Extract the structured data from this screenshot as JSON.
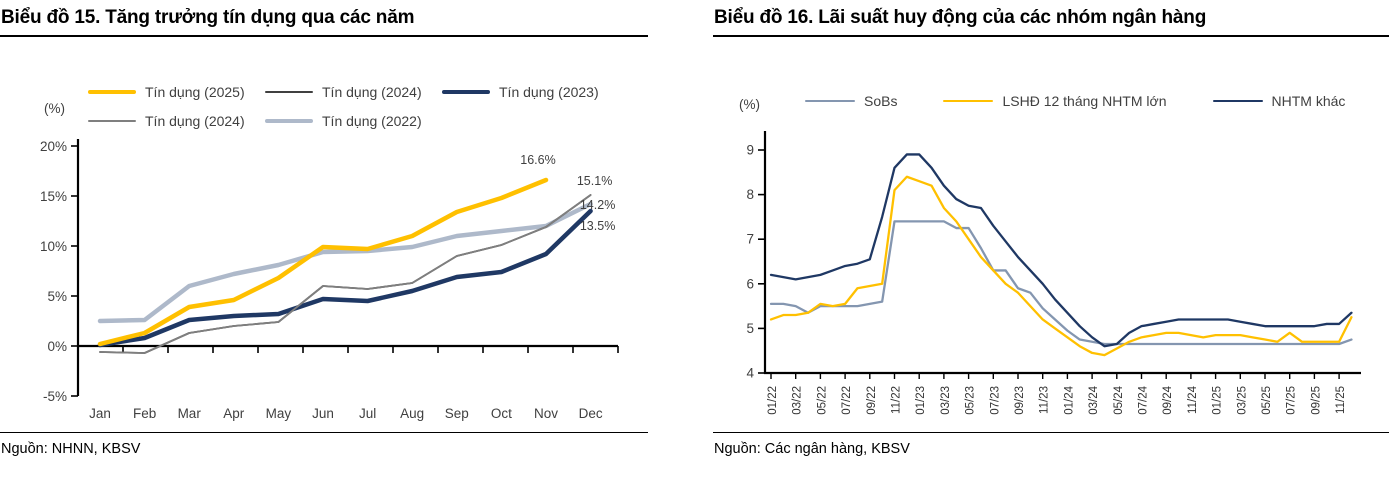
{
  "page": {
    "background": "#FFFFFF"
  },
  "panels": [
    {
      "title": "Biểu đồ 15. Tăng trưởng tín dụng qua các năm",
      "unit_label": "(%)",
      "source": "Nguồn: NHNN, KBSV"
    },
    {
      "title": "Biểu đồ 16. Lãi suất huy động của các nhóm ngân hàng",
      "unit_label": "(%)",
      "source": "Nguồn: Các ngân hàng, KBSV"
    }
  ],
  "chart_data": [
    {
      "type": "line",
      "title": "Biểu đồ 15. Tăng trưởng tín dụng qua các năm",
      "ylabel": "(%)",
      "categories": [
        "Jan",
        "Feb",
        "Mar",
        "Apr",
        "May",
        "Jun",
        "Jul",
        "Aug",
        "Sep",
        "Oct",
        "Nov",
        "Dec"
      ],
      "ylim": [
        -5,
        20
      ],
      "yticks": [
        {
          "v": 20,
          "label": "20%"
        },
        {
          "v": 15,
          "label": "15%"
        },
        {
          "v": 10,
          "label": "10%"
        },
        {
          "v": 5,
          "label": "5%"
        },
        {
          "v": 0,
          "label": "0%"
        },
        {
          "v": -5,
          "label": "-5%"
        }
      ],
      "grid": false,
      "legend_position": "top",
      "legend_rows": [
        [
          0,
          1,
          2
        ],
        [
          3,
          4
        ]
      ],
      "series": [
        {
          "name": "Tín dụng (2025)",
          "color": "#FFC000",
          "thick": true,
          "values": [
            0.2,
            1.3,
            3.9,
            4.6,
            6.8,
            9.9,
            9.7,
            11.0,
            13.4,
            14.8,
            16.6,
            null
          ],
          "end_label": "16.6%"
        },
        {
          "name": "Tín dụng (2024)",
          "color": "#404040",
          "thick": false,
          "values": [
            -0.6,
            -0.7,
            1.3,
            2.0,
            2.4,
            6.0,
            5.7,
            6.3,
            9.0,
            10.1,
            11.9,
            15.1
          ]
        },
        {
          "name": "Tín dụng (2023)",
          "color": "#1F3864",
          "thick": true,
          "values": [
            0.1,
            0.8,
            2.6,
            3.0,
            3.2,
            4.7,
            4.5,
            5.5,
            6.9,
            7.4,
            9.2,
            13.5
          ],
          "end_label": "13.5%"
        },
        {
          "name": "Tín dụng (2024)",
          "color": "#7F7F7F",
          "thick": false,
          "values": [
            -0.6,
            -0.7,
            1.3,
            2.0,
            2.4,
            6.0,
            5.7,
            6.3,
            9.0,
            10.1,
            11.9,
            15.1
          ],
          "end_label": "15.1%"
        },
        {
          "name": "Tín dụng (2022)",
          "color": "#AEB9CA",
          "thick": true,
          "values": [
            2.5,
            2.6,
            6.0,
            7.2,
            8.1,
            9.4,
            9.5,
            9.9,
            11.0,
            11.5,
            12.0,
            14.2
          ],
          "end_label": "14.2%"
        }
      ]
    },
    {
      "type": "line",
      "title": "Biểu đồ 16. Lãi suất huy động của các nhóm ngân hàng",
      "ylabel": "(%)",
      "x_frequency": "monthly",
      "xtick_labels": [
        "01/22",
        "03/22",
        "05/22",
        "07/22",
        "09/22",
        "11/22",
        "01/23",
        "03/23",
        "05/23",
        "07/23",
        "09/23",
        "11/23",
        "01/24",
        "03/24",
        "05/24",
        "07/24",
        "09/24",
        "11/24",
        "01/25",
        "03/25",
        "05/25",
        "07/25",
        "09/25",
        "11/25"
      ],
      "ylim": [
        4,
        9
      ],
      "yticks": [
        {
          "v": 9,
          "label": "9"
        },
        {
          "v": 8,
          "label": "8"
        },
        {
          "v": 7,
          "label": "7"
        },
        {
          "v": 6,
          "label": "6"
        },
        {
          "v": 5,
          "label": "5"
        },
        {
          "v": 4,
          "label": "4"
        }
      ],
      "grid": false,
      "legend_position": "top",
      "legend_rows": [
        [
          0,
          1,
          2
        ]
      ],
      "series": [
        {
          "name": "SoBs",
          "color": "#8496B0",
          "values": [
            5.55,
            5.55,
            5.5,
            5.35,
            5.5,
            5.5,
            5.5,
            5.5,
            5.55,
            5.6,
            7.4,
            7.4,
            7.4,
            7.4,
            7.4,
            7.25,
            7.25,
            6.8,
            6.3,
            6.3,
            5.9,
            5.8,
            5.45,
            5.2,
            4.95,
            4.75,
            4.7,
            4.65,
            4.65,
            4.65,
            4.65,
            4.65,
            4.65,
            4.65,
            4.65,
            4.65,
            4.65,
            4.65,
            4.65,
            4.65,
            4.65,
            4.65,
            4.65,
            4.65,
            4.65,
            4.65,
            4.65,
            4.75
          ]
        },
        {
          "name": "LSHĐ 12 tháng NHTM lớn",
          "color": "#FFC000",
          "values": [
            5.2,
            5.3,
            5.3,
            5.35,
            5.55,
            5.5,
            5.55,
            5.9,
            5.95,
            6.0,
            8.1,
            8.4,
            8.3,
            8.2,
            7.7,
            7.4,
            7.0,
            6.6,
            6.3,
            6.0,
            5.8,
            5.5,
            5.2,
            5.0,
            4.8,
            4.6,
            4.45,
            4.4,
            4.55,
            4.7,
            4.8,
            4.85,
            4.9,
            4.9,
            4.85,
            4.8,
            4.85,
            4.85,
            4.85,
            4.8,
            4.75,
            4.7,
            4.9,
            4.7,
            4.7,
            4.7,
            4.7,
            5.25
          ]
        },
        {
          "name": "NHTM khác",
          "color": "#1F3864",
          "values": [
            6.2,
            6.15,
            6.1,
            6.15,
            6.2,
            6.3,
            6.4,
            6.45,
            6.55,
            7.5,
            8.6,
            8.9,
            8.9,
            8.6,
            8.2,
            7.9,
            7.75,
            7.7,
            7.3,
            6.95,
            6.6,
            6.3,
            6.0,
            5.65,
            5.35,
            5.05,
            4.8,
            4.6,
            4.65,
            4.9,
            5.05,
            5.1,
            5.15,
            5.2,
            5.2,
            5.2,
            5.2,
            5.2,
            5.15,
            5.1,
            5.05,
            5.05,
            5.05,
            5.05,
            5.05,
            5.1,
            5.1,
            5.35
          ]
        }
      ]
    }
  ]
}
